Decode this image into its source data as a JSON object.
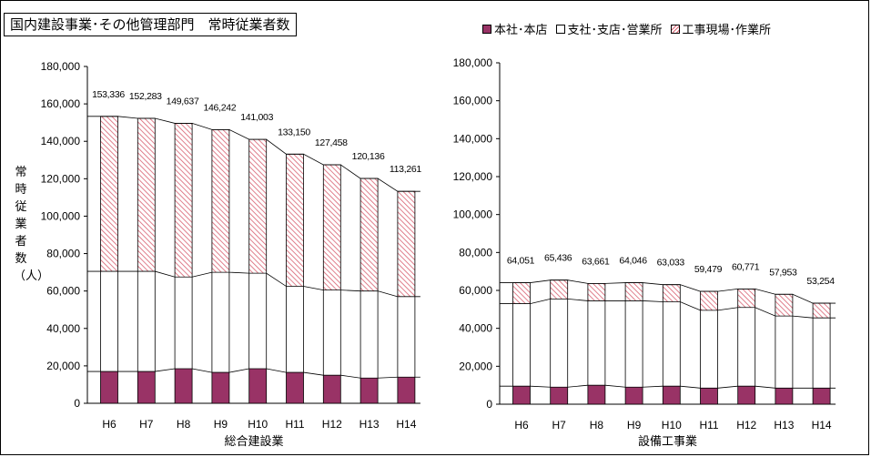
{
  "title": "国内建設事業･その他管理部門　常時従業者数",
  "ylabel": "常時従業者数（人）",
  "legend": [
    {
      "label": "本社･本店",
      "key": "head_office"
    },
    {
      "label": "支社･支店･営業所",
      "key": "branch"
    },
    {
      "label": "工事現場･作業所",
      "key": "site"
    }
  ],
  "colors": {
    "head_office": "#993366",
    "branch": "#ffffff",
    "site_hatch": "#d86070"
  },
  "chart_data": [
    {
      "type": "bar",
      "stacked": true,
      "xlabel": "総合建設業",
      "categories": [
        "H6",
        "H7",
        "H8",
        "H9",
        "H10",
        "H11",
        "H12",
        "H13",
        "H14"
      ],
      "ylim": [
        0,
        180000
      ],
      "yticks": [
        "0",
        "20,000",
        "40,000",
        "60,000",
        "80,000",
        "100,000",
        "120,000",
        "140,000",
        "160,000",
        "180,000"
      ],
      "series": [
        {
          "name": "本社･本店",
          "values": [
            17000,
            17000,
            18500,
            16500,
            18500,
            16500,
            15000,
            13500,
            14000
          ]
        },
        {
          "name": "支社･支店･営業所",
          "values": [
            53500,
            53500,
            49000,
            53500,
            51000,
            46000,
            45500,
            46500,
            43000
          ]
        },
        {
          "name": "工事現場･作業所",
          "values": [
            82836,
            81783,
            82137,
            76242,
            71503,
            70650,
            66958,
            60136,
            56261
          ]
        }
      ],
      "totals": [
        153336,
        152283,
        149637,
        146242,
        141003,
        133150,
        127458,
        120136,
        113261
      ],
      "total_labels": [
        "153,336",
        "152,283",
        "149,637",
        "146,242",
        "141,003",
        "133,150",
        "127,458",
        "120,136",
        "113,261"
      ],
      "grid": false
    },
    {
      "type": "bar",
      "stacked": true,
      "xlabel": "設備工事業",
      "categories": [
        "H6",
        "H7",
        "H8",
        "H9",
        "H10",
        "H11",
        "H12",
        "H13",
        "H14"
      ],
      "ylim": [
        0,
        180000
      ],
      "yticks": [
        "0",
        "20,000",
        "40,000",
        "60,000",
        "80,000",
        "100,000",
        "120,000",
        "140,000",
        "160,000",
        "180,000"
      ],
      "series": [
        {
          "name": "本社･本店",
          "values": [
            9500,
            9000,
            10000,
            9000,
            9500,
            8500,
            9500,
            8500,
            8500
          ]
        },
        {
          "name": "支社･支店･営業所",
          "values": [
            43500,
            46500,
            44500,
            45500,
            44500,
            41000,
            41500,
            38000,
            37000
          ]
        },
        {
          "name": "工事現場･作業所",
          "values": [
            11051,
            9936,
            9161,
            9546,
            9033,
            9979,
            9771,
            11453,
            7754
          ]
        }
      ],
      "totals": [
        64051,
        65436,
        63661,
        64046,
        63033,
        59479,
        60771,
        57953,
        53254
      ],
      "total_labels": [
        "64,051",
        "65,436",
        "63,661",
        "64,046",
        "63,033",
        "59,479",
        "60,771",
        "57,953",
        "53,254"
      ],
      "grid": false
    }
  ]
}
